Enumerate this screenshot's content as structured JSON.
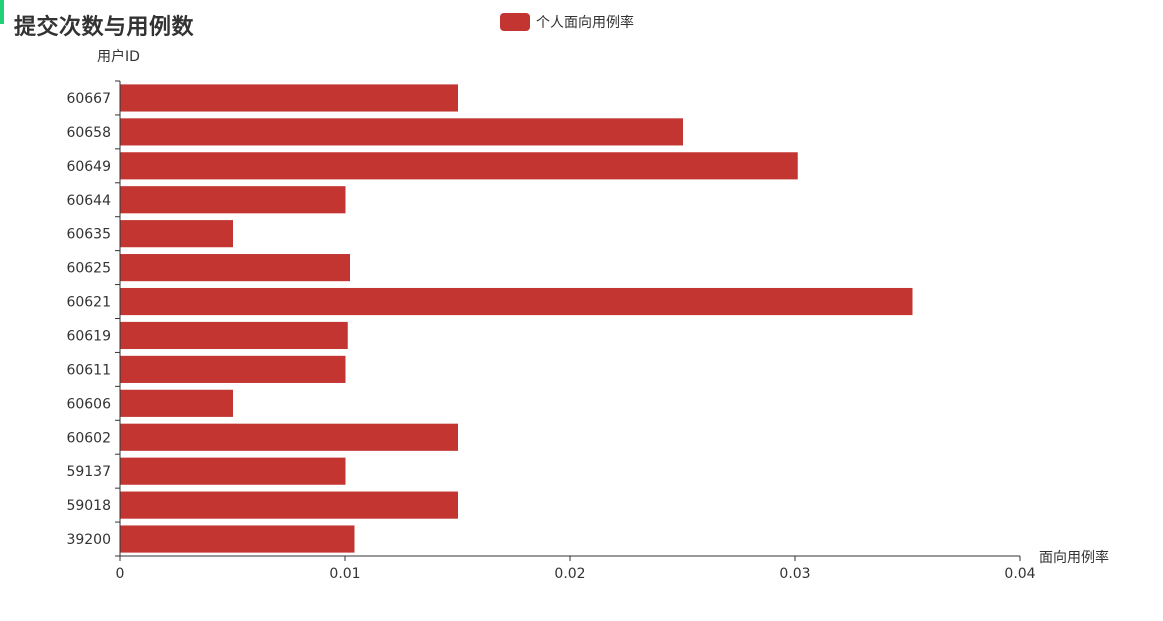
{
  "title": "提交次数与用例数",
  "legend": {
    "label": "个人面向用例率",
    "placement": "top-center"
  },
  "colors": {
    "bar": "#c23531",
    "accent": "#1fd27a",
    "axis": "#333333",
    "text": "#333333"
  },
  "chart_data": {
    "type": "bar",
    "orientation": "horizontal",
    "title": "提交次数与用例数",
    "ylabel": "用户ID",
    "xlabel": "面向用例率",
    "xlim": [
      0,
      0.04
    ],
    "x_ticks": [
      "0",
      "0.01",
      "0.02",
      "0.03",
      "0.04"
    ],
    "grid": false,
    "legend_position": "top-center",
    "categories": [
      "39200",
      "59018",
      "59137",
      "60602",
      "60606",
      "60611",
      "60619",
      "60621",
      "60625",
      "60635",
      "60644",
      "60649",
      "60658",
      "60667"
    ],
    "series": [
      {
        "name": "个人面向用例率",
        "values": [
          0.0104,
          0.015,
          0.01,
          0.015,
          0.005,
          0.01,
          0.0101,
          0.0352,
          0.0102,
          0.005,
          0.01,
          0.0301,
          0.025,
          0.015
        ]
      }
    ]
  }
}
